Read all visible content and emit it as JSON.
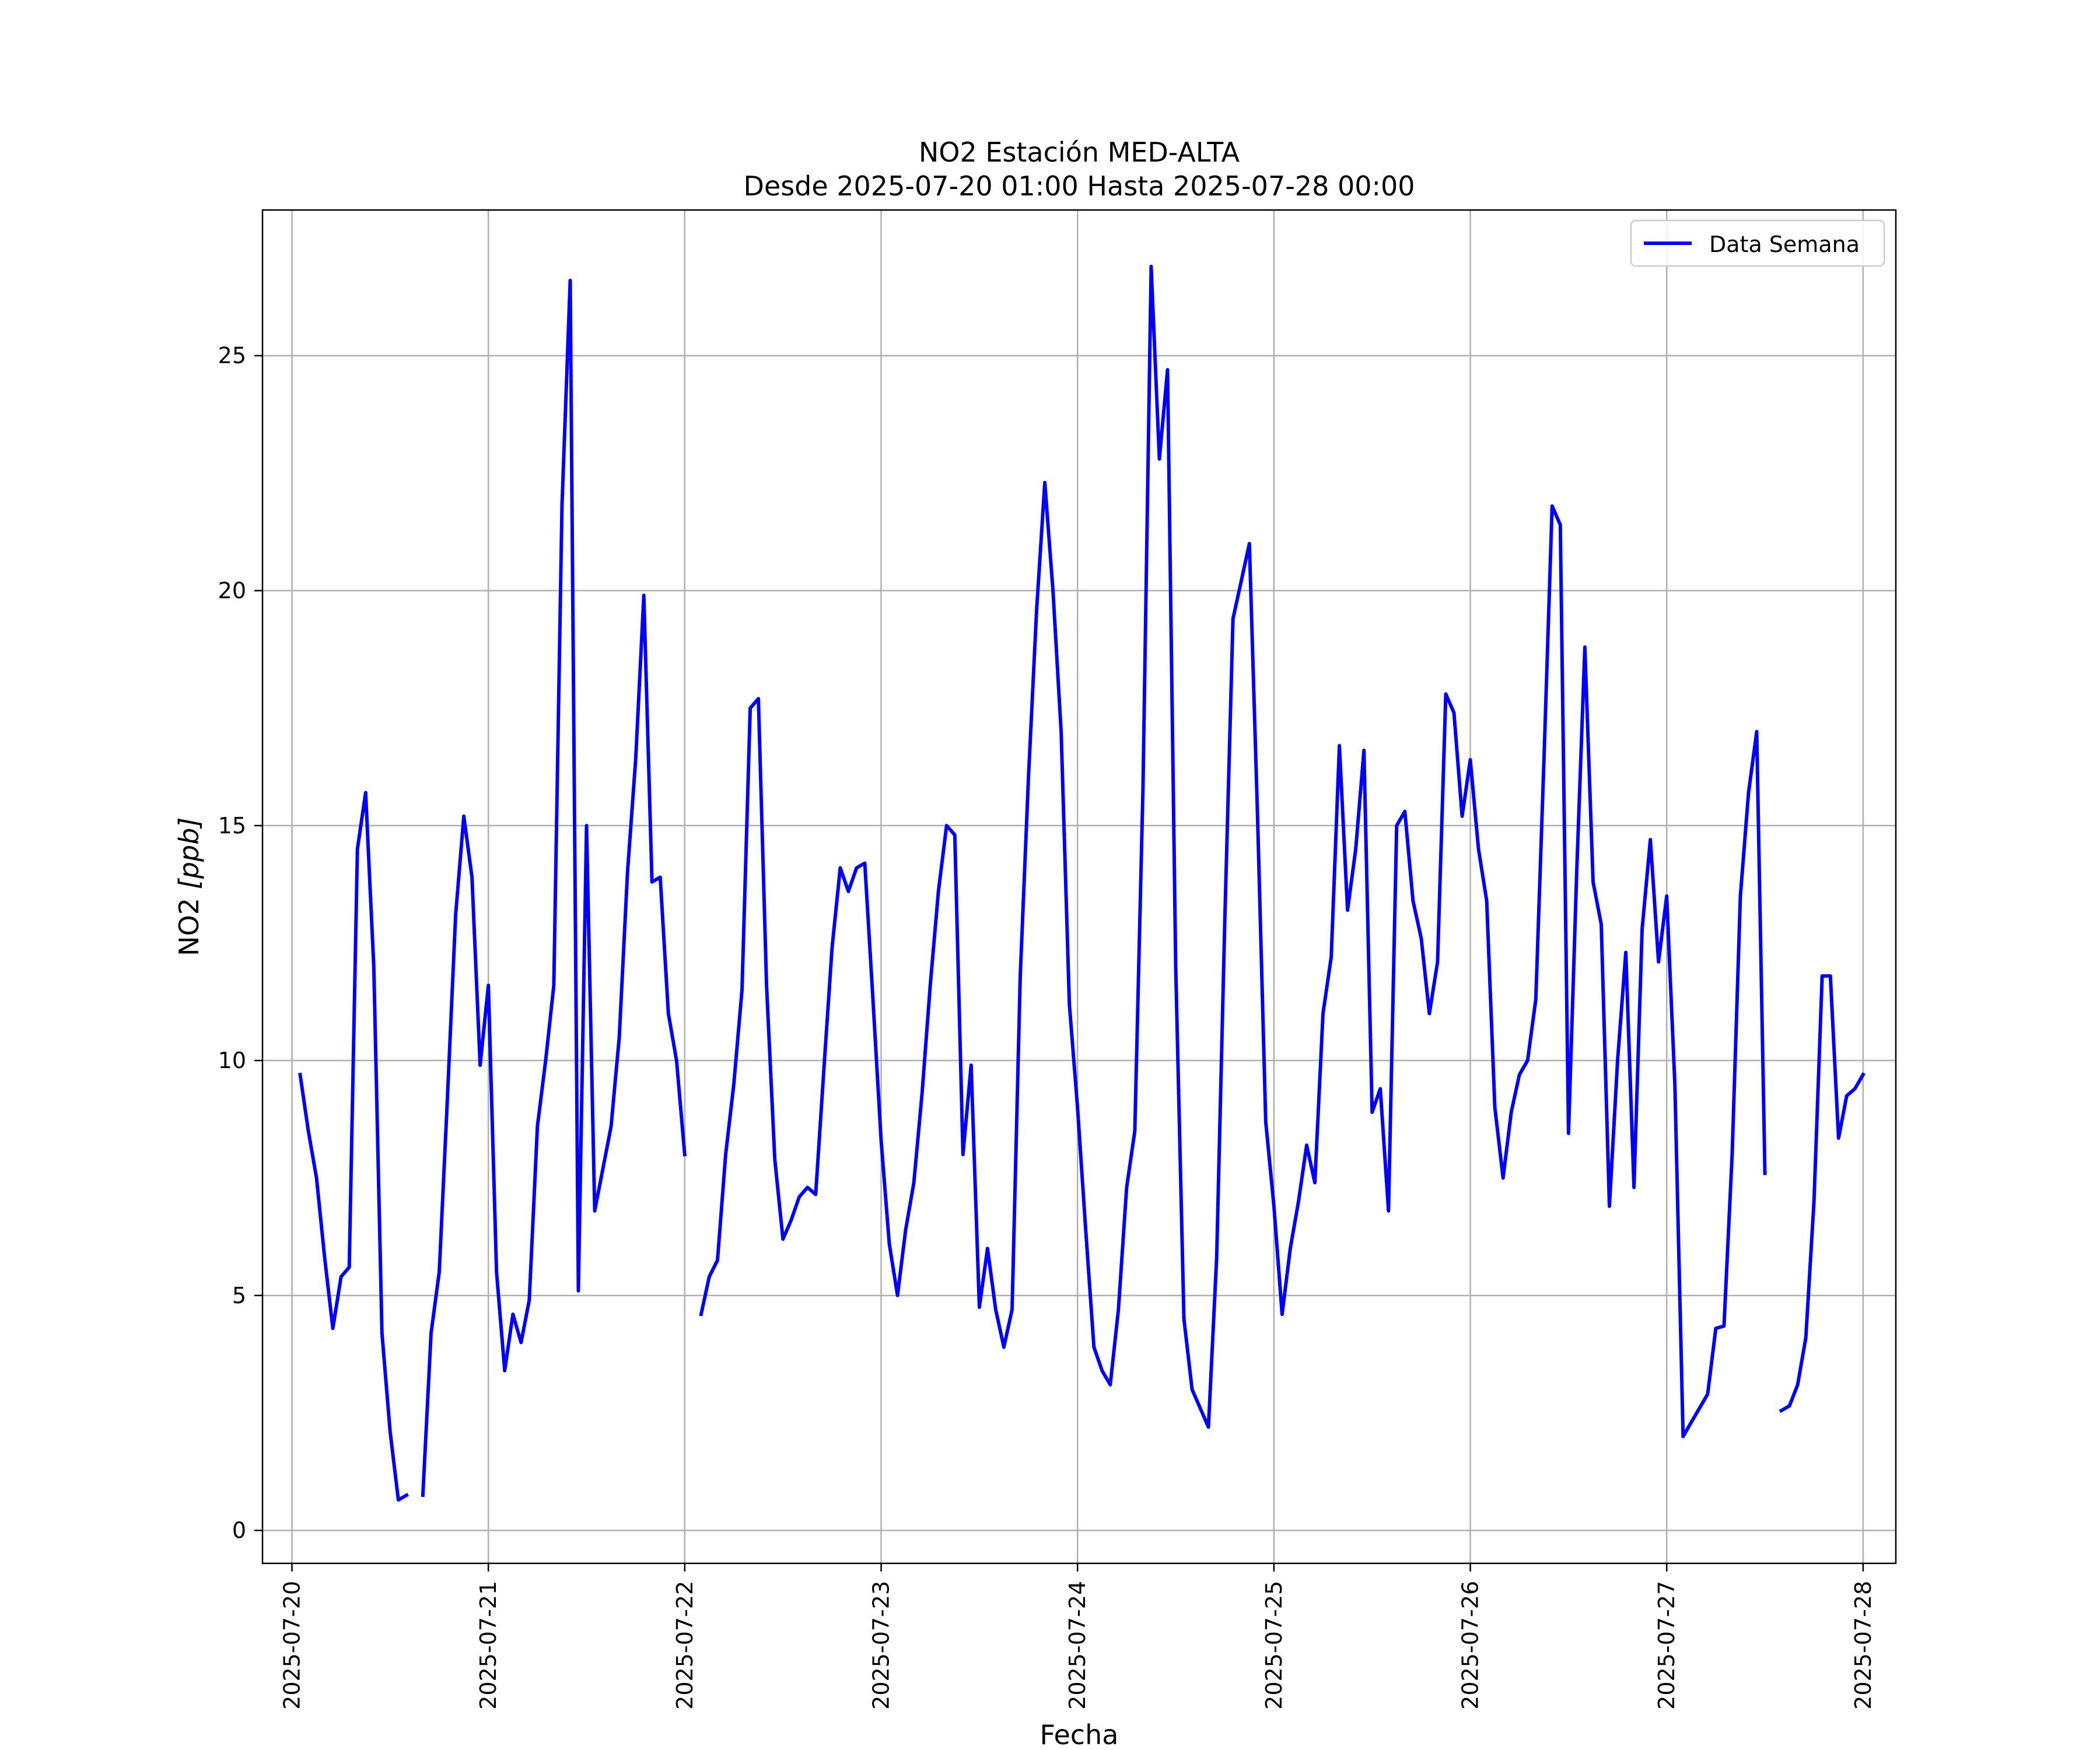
{
  "chart_data": {
    "type": "line",
    "title": "NO2 Estación MED-ALTA",
    "subtitle": "Desde 2025-07-20 01:00 Hasta 2025-07-28 00:00",
    "xlabel": "Fecha",
    "ylabel_main": "NO2 ",
    "ylabel_unit": "[ppb]",
    "x_unit": "hours since 2025-07-20 00:00",
    "xlim": [
      -3.6,
      196
    ],
    "ylim": [
      -0.7,
      28.1
    ],
    "x_ticks": [
      0,
      24,
      48,
      72,
      96,
      120,
      144,
      168,
      192
    ],
    "x_tick_labels": [
      "2025-07-20",
      "2025-07-21",
      "2025-07-22",
      "2025-07-23",
      "2025-07-24",
      "2025-07-25",
      "2025-07-26",
      "2025-07-27",
      "2025-07-28"
    ],
    "y_ticks": [
      0,
      5,
      10,
      15,
      20,
      25
    ],
    "y_tick_labels": [
      "0",
      "5",
      "10",
      "15",
      "20",
      "25"
    ],
    "grid": true,
    "legend": {
      "position": "top-right"
    },
    "series": [
      {
        "name": "Data Semana",
        "color": "#0000ff",
        "segments": [
          [
            [
              1,
              9.7
            ],
            [
              2,
              8.5
            ],
            [
              3,
              7.5
            ],
            [
              4,
              5.8
            ],
            [
              5,
              4.3
            ],
            [
              6,
              5.4
            ],
            [
              7,
              5.6
            ],
            [
              8,
              14.5
            ],
            [
              9,
              15.7
            ],
            [
              10,
              12
            ],
            [
              11,
              4.2
            ],
            [
              12,
              2.1
            ],
            [
              13,
              0.65
            ],
            [
              14,
              0.75
            ]
          ],
          [
            [
              16,
              0.75
            ],
            [
              17,
              4.2
            ],
            [
              18,
              5.5
            ],
            [
              19,
              9.2
            ],
            [
              20,
              13.1
            ],
            [
              21,
              15.2
            ],
            [
              22,
              13.9
            ],
            [
              23,
              9.9
            ],
            [
              24,
              11.6
            ],
            [
              25,
              5.5
            ],
            [
              26,
              3.4
            ],
            [
              27,
              4.6
            ],
            [
              28,
              4
            ],
            [
              29,
              4.9
            ],
            [
              30,
              8.6
            ],
            [
              31,
              10
            ],
            [
              32,
              11.6
            ],
            [
              33,
              21.8
            ],
            [
              34,
              26.6
            ],
            [
              35,
              5.1
            ],
            [
              36,
              15
            ],
            [
              37,
              6.8
            ],
            [
              38,
              7.7
            ],
            [
              39,
              8.6
            ],
            [
              40,
              10.5
            ],
            [
              41,
              14
            ],
            [
              42,
              16.4
            ],
            [
              43,
              19.9
            ],
            [
              44,
              13.8
            ],
            [
              45,
              13.9
            ],
            [
              46,
              11
            ],
            [
              47,
              10
            ],
            [
              48,
              8
            ]
          ],
          [
            [
              50,
              4.6
            ],
            [
              51,
              5.4
            ],
            [
              52,
              5.75
            ],
            [
              53,
              8
            ],
            [
              54,
              9.5
            ],
            [
              55,
              11.5
            ],
            [
              56,
              17.5
            ],
            [
              57,
              17.7
            ],
            [
              58,
              11.6
            ],
            [
              59,
              7.9
            ],
            [
              60,
              6.2
            ],
            [
              61,
              6.6
            ],
            [
              62,
              7.1
            ],
            [
              63,
              7.3
            ],
            [
              64,
              7.15
            ],
            [
              65,
              9.8
            ],
            [
              66,
              12.4
            ],
            [
              67,
              14.1
            ],
            [
              68,
              13.6
            ],
            [
              69,
              14.1
            ],
            [
              70,
              14.2
            ],
            [
              71,
              11.3
            ],
            [
              72,
              8.3
            ],
            [
              73,
              6.1
            ],
            [
              74,
              5
            ],
            [
              75,
              6.4
            ],
            [
              76,
              7.4
            ],
            [
              77,
              9.3
            ],
            [
              78,
              11.6
            ],
            [
              79,
              13.6
            ],
            [
              80,
              15
            ],
            [
              81,
              14.8
            ],
            [
              82,
              8
            ],
            [
              83,
              9.9
            ],
            [
              84,
              4.75
            ],
            [
              85,
              6
            ],
            [
              86,
              4.7
            ],
            [
              87,
              3.9
            ],
            [
              88,
              4.7
            ],
            [
              89,
              11.8
            ],
            [
              90,
              16
            ],
            [
              91,
              19.6
            ],
            [
              92,
              22.3
            ],
            [
              93,
              20
            ],
            [
              94,
              17
            ],
            [
              95,
              11.2
            ],
            [
              96,
              9
            ],
            [
              97,
              6.4
            ],
            [
              98,
              3.9
            ],
            [
              99,
              3.4
            ],
            [
              100,
              3.1
            ],
            [
              101,
              4.7
            ],
            [
              102,
              7.3
            ],
            [
              103,
              8.5
            ],
            [
              104,
              15.8
            ],
            [
              105,
              26.9
            ],
            [
              106,
              22.8
            ],
            [
              107,
              24.7
            ],
            [
              108,
              12
            ],
            [
              109,
              4.5
            ],
            [
              110,
              3
            ],
            [
              111,
              2.6
            ],
            [
              112,
              2.2
            ],
            [
              113,
              5.8
            ],
            [
              114,
              13
            ],
            [
              115,
              19.4
            ],
            [
              116,
              20.2
            ],
            [
              117,
              21
            ],
            [
              118,
              15.2
            ],
            [
              119,
              8.7
            ],
            [
              120,
              6.9
            ],
            [
              121,
              4.6
            ],
            [
              122,
              6
            ],
            [
              123,
              7
            ],
            [
              124,
              8.2
            ],
            [
              125,
              7.4
            ],
            [
              126,
              11
            ],
            [
              127,
              12.2
            ],
            [
              128,
              16.7
            ],
            [
              129,
              13.2
            ],
            [
              130,
              14.5
            ],
            [
              131,
              16.6
            ],
            [
              132,
              8.9
            ],
            [
              133,
              9.4
            ],
            [
              134,
              6.8
            ],
            [
              135,
              15
            ],
            [
              136,
              15.3
            ],
            [
              137,
              13.4
            ],
            [
              138,
              12.6
            ],
            [
              139,
              11
            ],
            [
              140,
              12.1
            ],
            [
              141,
              17.8
            ],
            [
              142,
              17.4
            ],
            [
              143,
              15.2
            ],
            [
              144,
              16.4
            ],
            [
              145,
              14.5
            ],
            [
              146,
              13.4
            ],
            [
              147,
              9
            ],
            [
              148,
              7.5
            ],
            [
              149,
              8.9
            ],
            [
              150,
              9.7
            ],
            [
              151,
              10
            ],
            [
              152,
              11.3
            ],
            [
              153,
              16.4
            ],
            [
              154,
              21.8
            ],
            [
              155,
              21.4
            ],
            [
              156,
              8.45
            ],
            [
              157,
              14
            ],
            [
              158,
              18.8
            ],
            [
              159,
              13.8
            ],
            [
              160,
              12.9
            ],
            [
              161,
              6.9
            ],
            [
              162,
              10
            ],
            [
              163,
              12.3
            ],
            [
              164,
              7.3
            ],
            [
              165,
              12.8
            ],
            [
              166,
              14.7
            ],
            [
              167,
              12.1
            ],
            [
              168,
              13.5
            ],
            [
              169,
              9.5
            ],
            [
              170,
              2
            ],
            [
              171,
              2.3
            ],
            [
              172,
              2.6
            ],
            [
              173,
              2.9
            ],
            [
              174,
              4.3
            ],
            [
              175,
              4.35
            ],
            [
              176,
              8
            ],
            [
              177,
              13.5
            ],
            [
              178,
              15.7
            ],
            [
              179,
              17
            ],
            [
              180,
              7.6
            ]
          ],
          [
            [
              182,
              2.55
            ],
            [
              183,
              2.65
            ],
            [
              184,
              3.1
            ],
            [
              185,
              4.1
            ],
            [
              186,
              7
            ],
            [
              187,
              11.8
            ],
            [
              188,
              11.8
            ],
            [
              189,
              8.35
            ],
            [
              190,
              9.25
            ],
            [
              191,
              9.4
            ],
            [
              192,
              9.7
            ]
          ]
        ]
      }
    ]
  }
}
